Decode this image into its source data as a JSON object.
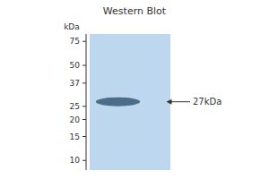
{
  "chart_data": {
    "type": "blot",
    "title": "Western Blot",
    "ylabel": "kDa",
    "values": [
      27
    ],
    "value_labels": [
      "27kDa"
    ],
    "data_labels": true,
    "color": "#4a6e8a",
    "log": "y",
    "ylim": [
      8.5,
      85
    ],
    "yticks": [
      10,
      15,
      20,
      25,
      37,
      50,
      75
    ],
    "tick_labels": "y",
    "grid": false
  }
}
